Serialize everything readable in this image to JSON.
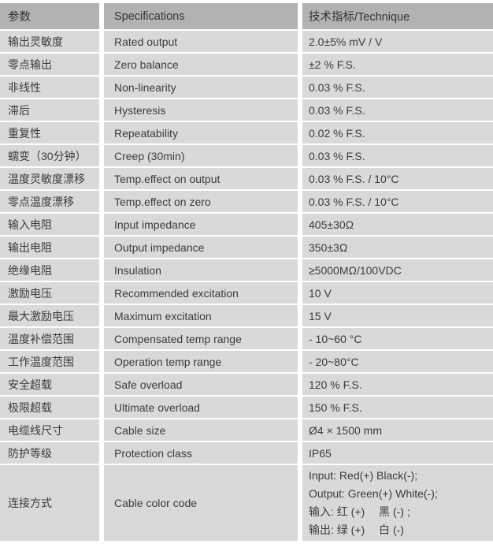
{
  "colors": {
    "header_bg": "#b2b2b2",
    "cell_bg": "#d9d9d9",
    "separator": "#ffffff",
    "text": "#3c3c3c"
  },
  "table": {
    "headers": [
      "参数",
      "Specifications",
      "技术指标/Technique"
    ],
    "rows": [
      {
        "param": "输出灵敏度",
        "spec": "Rated output",
        "value": "2.0±5% mV / V"
      },
      {
        "param": "零点输出",
        "spec": "Zero balance",
        "value": "±2 % F.S."
      },
      {
        "param": "非线性",
        "spec": "Non-linearity",
        "value": "0.03 % F.S."
      },
      {
        "param": "滞后",
        "spec": "Hysteresis",
        "value": "0.03 % F.S."
      },
      {
        "param": "重复性",
        "spec": "Repeatability",
        "value": "0.02 % F.S."
      },
      {
        "param": "蠕变（30分钟）",
        "spec": "Creep (30min)",
        "value": "0.03 % F.S."
      },
      {
        "param": "温度灵敏度漂移",
        "spec": "Temp.effect on output",
        "value": "0.03 % F.S. / 10°C"
      },
      {
        "param": "零点温度漂移",
        "spec": "Temp.effect on zero",
        "value": "0.03 % F.S. / 10°C"
      },
      {
        "param": "输入电阻",
        "spec": "Input impedance",
        "value": "405±30Ω"
      },
      {
        "param": "输出电阻",
        "spec": "Output impedance",
        "value": "350±3Ω"
      },
      {
        "param": "绝缘电阻",
        "spec": "Insulation",
        "value": "≥5000MΩ/100VDC"
      },
      {
        "param": "激励电压",
        "spec": "Recommended excitation",
        "value": "10 V"
      },
      {
        "param": "最大激励电压",
        "spec": "Maximum excitation",
        "value": "15 V"
      },
      {
        "param": "温度补偿范围",
        "spec": "Compensated temp range",
        "value": "- 10~60 °C"
      },
      {
        "param": "工作温度范围",
        "spec": "Operation temp range",
        "value": "- 20~80°C"
      },
      {
        "param": "安全超载",
        "spec": "Safe overload",
        "value": "120 % F.S."
      },
      {
        "param": "极限超载",
        "spec": "Ultimate overload",
        "value": "150 % F.S."
      },
      {
        "param": "电缆线尺寸",
        "spec": "Cable size",
        "value": "Ø4 × 1500 mm"
      },
      {
        "param": "防护等级",
        "spec": "Protection class",
        "value": "IP65"
      },
      {
        "param": "连接方式",
        "spec": "Cable color code",
        "value_lines": [
          "Input: Red(+) Black(-);",
          "Output: Green(+) White(-);",
          "输入: 红 (+)　 黑 (-) ;",
          "输出: 绿 (+)　 白 (-)"
        ]
      }
    ]
  }
}
